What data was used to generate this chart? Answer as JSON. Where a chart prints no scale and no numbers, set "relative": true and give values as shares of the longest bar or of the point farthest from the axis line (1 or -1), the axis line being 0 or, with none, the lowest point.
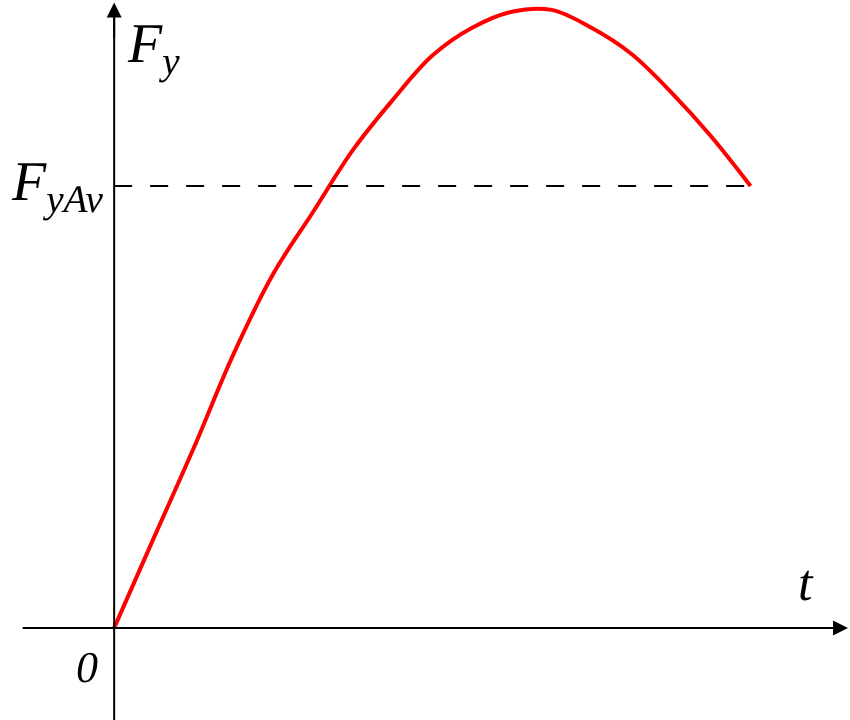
{
  "chart_data": {
    "type": "line",
    "relative": true,
    "xlabel": "t",
    "ylabel": "F$_{y}$",
    "categories": [
      null,
      null,
      null,
      null,
      null,
      null,
      null,
      null,
      null,
      null,
      null,
      null,
      null,
      null,
      null,
      null,
      null
    ],
    "series": [
      {
        "color": "#ff0000",
        "values": [
          0,
          0.146,
          0.291,
          0.443,
          0.573,
          0.673,
          0.773,
          0.854,
          0.926,
          0.971,
          0.997,
          1.0,
          0.971,
          0.929,
          0.867,
          0.796,
          0.715
        ]
      }
    ],
    "ref_lines": [
      {
        "axis": "y",
        "value": 0.715,
        "label": "F$_{yAv}$",
        "color": "#000000",
        "line_style": "dashed"
      }
    ],
    "annotations": [
      "0"
    ],
    "legend": false
  }
}
